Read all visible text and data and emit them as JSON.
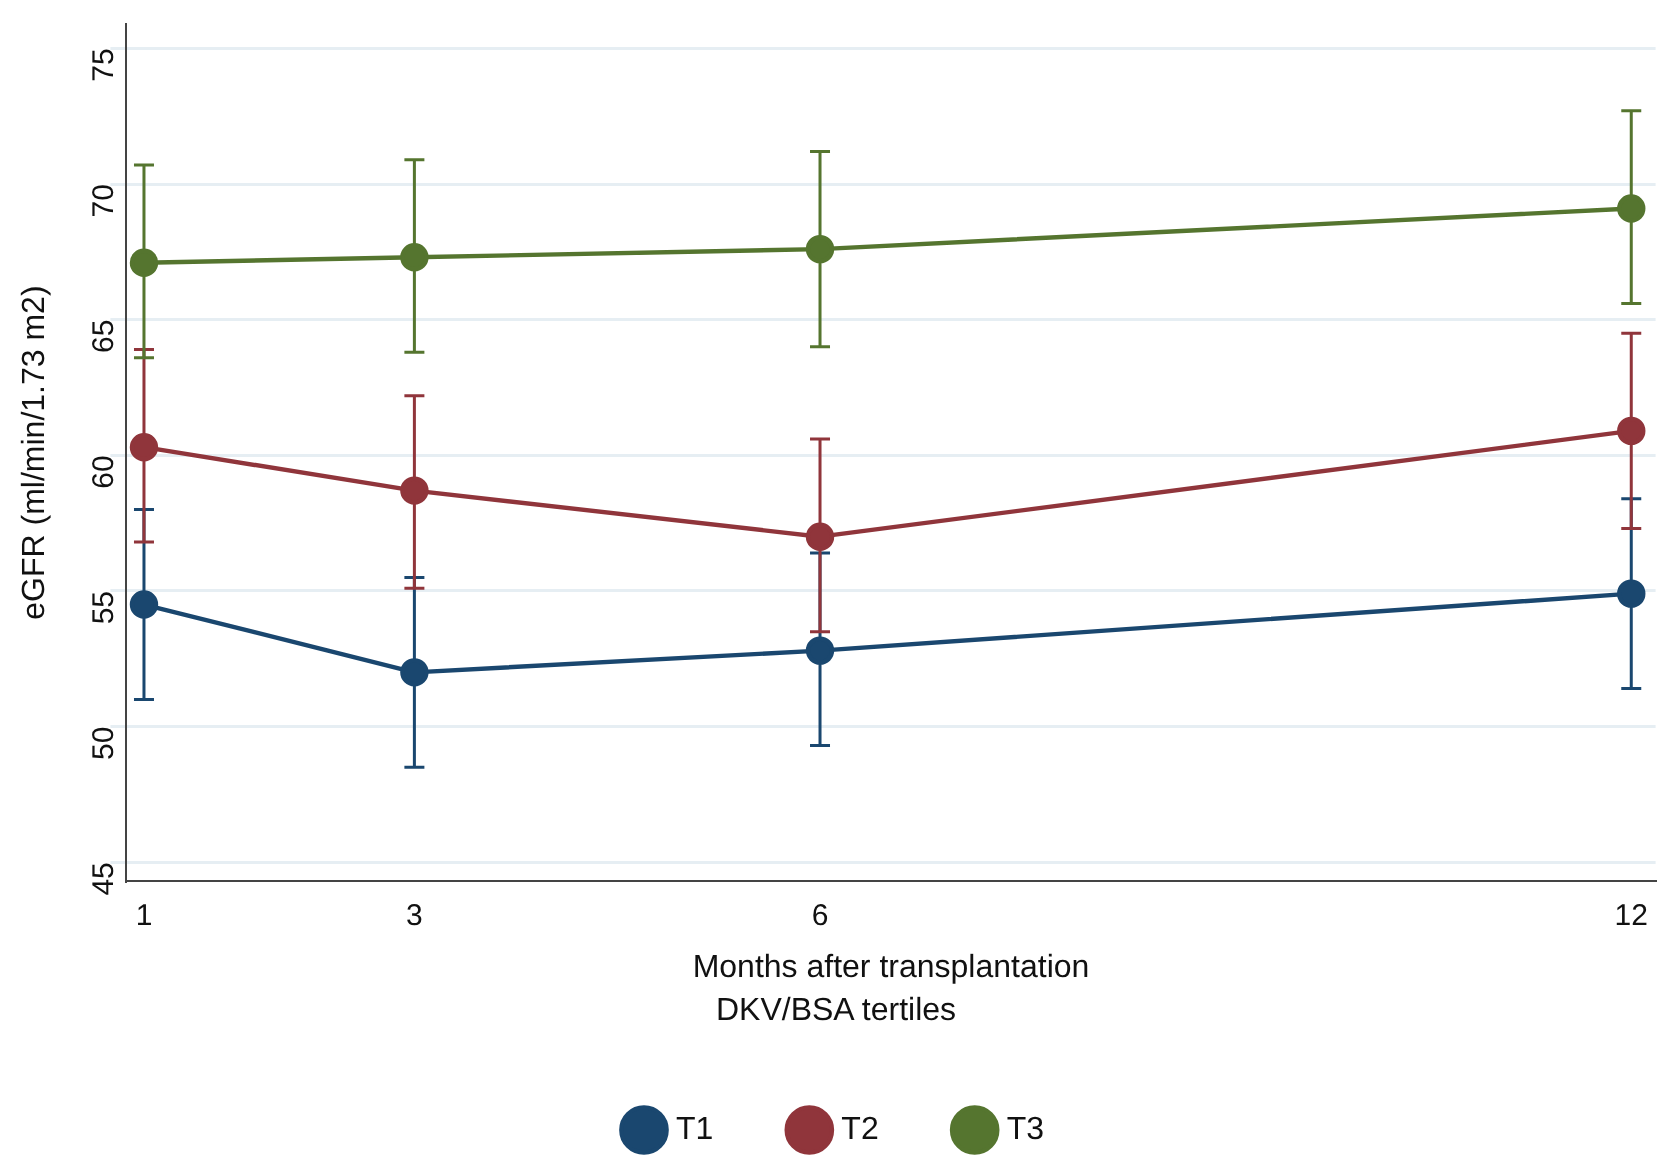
{
  "chart_data": {
    "type": "line",
    "xlabel": "Months after transplantation",
    "ylabel": "eGFR (ml/min/1.73 m2)",
    "legend_title": "DKV/BSA tertiles",
    "x": [
      1,
      3,
      6,
      12
    ],
    "series": [
      {
        "name": "T1",
        "color": "#1a476f",
        "values": [
          54.5,
          52.0,
          52.8,
          54.9
        ],
        "errors": [
          [
            51.0,
            58.0
          ],
          [
            48.5,
            55.5
          ],
          [
            49.3,
            56.4
          ],
          [
            51.4,
            58.4
          ]
        ]
      },
      {
        "name": "T2",
        "color": "#90353b",
        "values": [
          60.3,
          58.7,
          57.0,
          60.9
        ],
        "errors": [
          [
            56.8,
            63.9
          ],
          [
            55.1,
            62.2
          ],
          [
            53.5,
            60.6
          ],
          [
            57.3,
            64.5
          ]
        ]
      },
      {
        "name": "T3",
        "color": "#55752f",
        "values": [
          67.1,
          67.3,
          67.6,
          69.1
        ],
        "errors": [
          [
            63.6,
            70.7
          ],
          [
            63.8,
            70.9
          ],
          [
            64.0,
            71.2
          ],
          [
            65.6,
            72.7
          ]
        ]
      }
    ],
    "xlim": [
      0.87,
      12.18
    ],
    "ylim": [
      44.3,
      75.9
    ],
    "xticks": [
      1,
      3,
      6,
      12
    ],
    "yticks": [
      45,
      50,
      55,
      60,
      65,
      70,
      75
    ],
    "grid": "y",
    "legend": "bottom",
    "marker": "circle",
    "line_style": "solid"
  }
}
